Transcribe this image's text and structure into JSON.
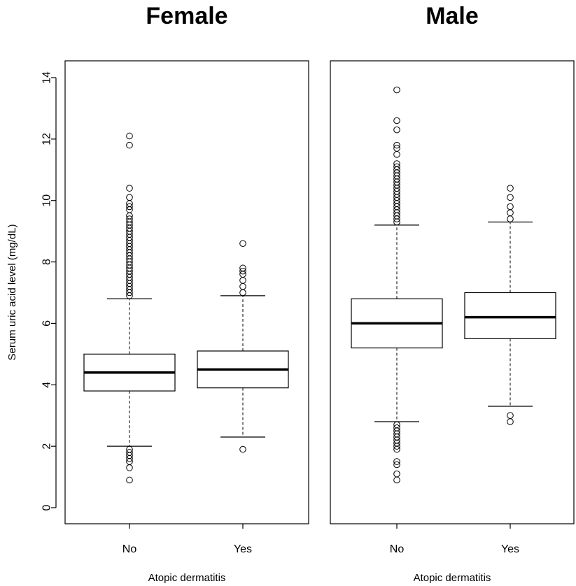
{
  "chart_data": {
    "type": "boxplot",
    "ylabel": "Serum uric acid level (mg/dL)",
    "ylim": [
      -0.5,
      14.5
    ],
    "yticks": [
      0,
      2,
      4,
      6,
      8,
      10,
      12,
      14
    ],
    "grid": false,
    "panels": [
      {
        "title": "Female",
        "xlabel": "Atopic dermatitis",
        "boxes": [
          {
            "category": "No",
            "whisker_low": 2.0,
            "q1": 3.8,
            "median": 4.4,
            "q3": 5.0,
            "whisker_high": 6.8,
            "outliers": [
              0.9,
              1.3,
              1.5,
              1.6,
              1.7,
              1.8,
              1.9,
              6.9,
              7.0,
              7.1,
              7.2,
              7.3,
              7.4,
              7.5,
              7.6,
              7.7,
              7.8,
              7.9,
              8.0,
              8.1,
              8.2,
              8.3,
              8.4,
              8.5,
              8.6,
              8.7,
              8.8,
              8.9,
              9.0,
              9.1,
              9.2,
              9.3,
              9.4,
              9.5,
              9.7,
              9.8,
              9.9,
              10.1,
              10.4,
              11.8,
              12.1
            ]
          },
          {
            "category": "Yes",
            "whisker_low": 2.3,
            "q1": 3.9,
            "median": 4.5,
            "q3": 5.1,
            "whisker_high": 6.9,
            "outliers": [
              1.9,
              7.0,
              7.2,
              7.4,
              7.6,
              7.7,
              7.8,
              8.6
            ]
          }
        ]
      },
      {
        "title": "Male",
        "xlabel": "Atopic dermatitis",
        "boxes": [
          {
            "category": "No",
            "whisker_low": 2.8,
            "q1": 5.2,
            "median": 6.0,
            "q3": 6.8,
            "whisker_high": 9.2,
            "outliers": [
              0.9,
              1.1,
              1.4,
              1.5,
              1.9,
              2.0,
              2.1,
              2.2,
              2.3,
              2.4,
              2.5,
              2.6,
              2.7,
              9.3,
              9.4,
              9.5,
              9.6,
              9.7,
              9.8,
              9.9,
              10.0,
              10.1,
              10.2,
              10.3,
              10.4,
              10.5,
              10.6,
              10.7,
              10.8,
              10.9,
              11.0,
              11.1,
              11.2,
              11.5,
              11.7,
              11.8,
              12.3,
              12.6,
              13.6
            ]
          },
          {
            "category": "Yes",
            "whisker_low": 3.3,
            "q1": 5.5,
            "median": 6.2,
            "q3": 7.0,
            "whisker_high": 9.3,
            "outliers": [
              2.8,
              3.0,
              9.4,
              9.6,
              9.8,
              10.1,
              10.4
            ]
          }
        ]
      }
    ]
  }
}
